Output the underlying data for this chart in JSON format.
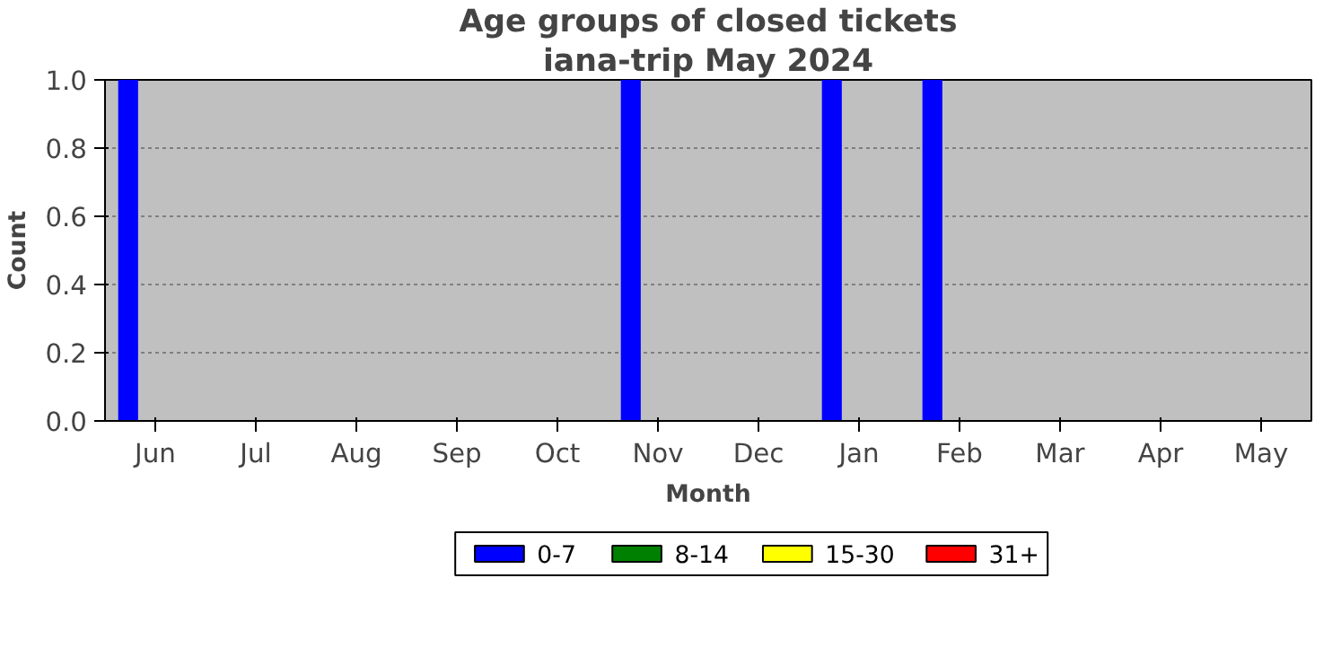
{
  "chart_data": {
    "type": "bar",
    "title": "Age groups of closed tickets",
    "subtitle": "iana-trip May 2024",
    "xlabel": "Month",
    "ylabel": "Count",
    "categories": [
      "Jun",
      "Jul",
      "Aug",
      "Sep",
      "Oct",
      "Nov",
      "Dec",
      "Jan",
      "Feb",
      "Mar",
      "Apr",
      "May"
    ],
    "series": [
      {
        "name": "0-7",
        "color": "#0000ff",
        "values": [
          1,
          0,
          0,
          0,
          0,
          1,
          0,
          1,
          1,
          0,
          0,
          0
        ]
      },
      {
        "name": "8-14",
        "color": "#008000",
        "values": [
          0,
          0,
          0,
          0,
          0,
          0,
          0,
          0,
          0,
          0,
          0,
          0
        ]
      },
      {
        "name": "15-30",
        "color": "#ffff00",
        "values": [
          0,
          0,
          0,
          0,
          0,
          0,
          0,
          0,
          0,
          0,
          0,
          0
        ]
      },
      {
        "name": "31+",
        "color": "#ff0000",
        "values": [
          0,
          0,
          0,
          0,
          0,
          0,
          0,
          0,
          0,
          0,
          0,
          0
        ]
      }
    ],
    "ylim": [
      0,
      1
    ],
    "yticks": [
      {
        "value": 0,
        "label": "0.0"
      },
      {
        "value": 0.2,
        "label": "0.2"
      },
      {
        "value": 0.4,
        "label": "0.4"
      },
      {
        "value": 0.6,
        "label": "0.6"
      },
      {
        "value": 0.8,
        "label": "0.8"
      },
      {
        "value": 1,
        "label": "1.0"
      }
    ],
    "grid": "y",
    "legend": "bottom"
  }
}
